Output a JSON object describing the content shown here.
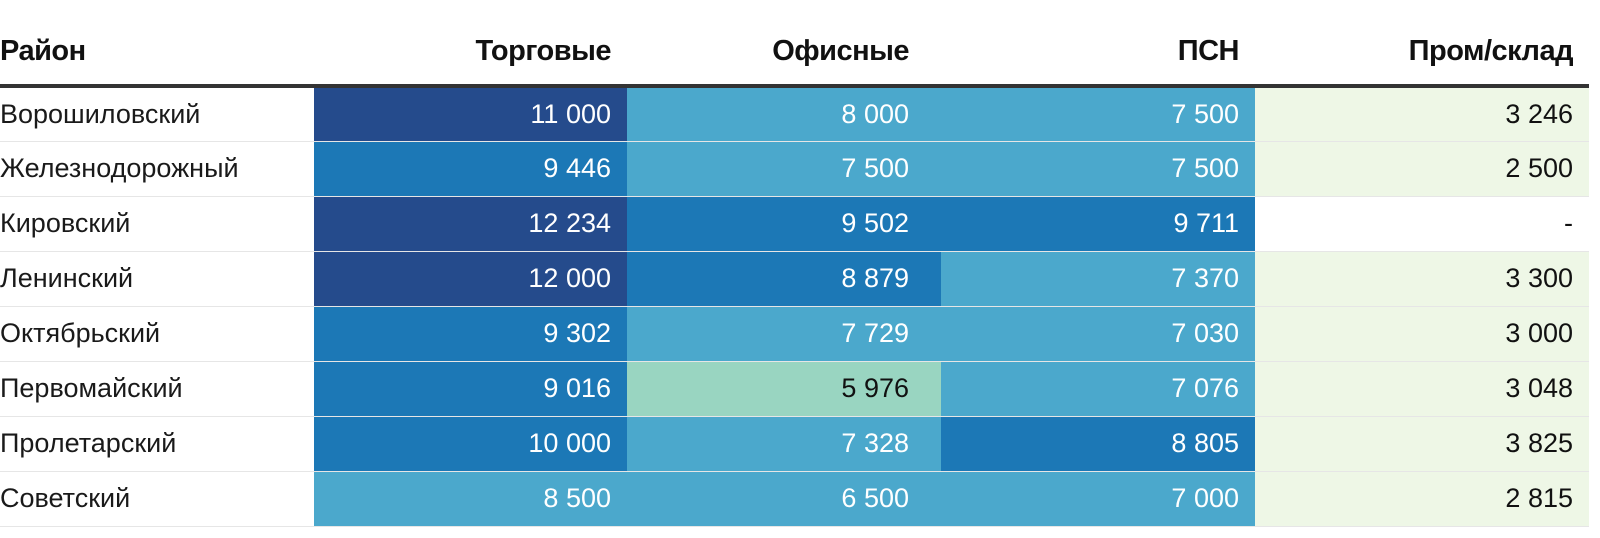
{
  "chart_data": {
    "type": "table",
    "columns": [
      "Район",
      "Торговые",
      "Офисные",
      "ПСН",
      "Пром/склад"
    ],
    "rows": [
      {
        "district": "Ворошиловский",
        "values": [
          "11 000",
          "8 000",
          "7 500",
          "3 246"
        ],
        "numeric": [
          11000,
          8000,
          7500,
          3246
        ]
      },
      {
        "district": "Железнодорожный",
        "values": [
          "9 446",
          "7 500",
          "7 500",
          "2 500"
        ],
        "numeric": [
          9446,
          7500,
          7500,
          2500
        ]
      },
      {
        "district": "Кировский",
        "values": [
          "12 234",
          "9 502",
          "9 711",
          "-"
        ],
        "numeric": [
          12234,
          9502,
          9711,
          null
        ]
      },
      {
        "district": "Ленинский",
        "values": [
          "12 000",
          "8 879",
          "7 370",
          "3 300"
        ],
        "numeric": [
          12000,
          8879,
          7370,
          3300
        ]
      },
      {
        "district": "Октябрьский",
        "values": [
          "9 302",
          "7 729",
          "7 030",
          "3 000"
        ],
        "numeric": [
          9302,
          7729,
          7030,
          3000
        ]
      },
      {
        "district": "Первомайский",
        "values": [
          "9 016",
          "5 976",
          "7 076",
          "3 048"
        ],
        "numeric": [
          9016,
          5976,
          7076,
          3048
        ]
      },
      {
        "district": "Пролетарский",
        "values": [
          "10 000",
          "7 328",
          "8 805",
          "3 825"
        ],
        "numeric": [
          10000,
          7328,
          8805,
          3825
        ]
      },
      {
        "district": "Советский",
        "values": [
          "8 500",
          "6 500",
          "7 000",
          "2 815"
        ],
        "numeric": [
          8500,
          6500,
          7000,
          2815
        ]
      }
    ],
    "color_scale": {
      "stops": [
        {
          "min": 0,
          "color": "#eef7e6",
          "text": "#111111"
        },
        {
          "min": 5000,
          "color": "#99d5c1",
          "text": "#111111"
        },
        {
          "min": 6500,
          "color": "#4ba8cc",
          "text": "#ffffff"
        },
        {
          "min": 8800,
          "color": "#1c78b6",
          "text": "#ffffff"
        },
        {
          "min": 11000,
          "color": "#254b8c",
          "text": "#ffffff"
        }
      ],
      "missing_color": "#ffffff",
      "missing_text": "#111111"
    }
  }
}
